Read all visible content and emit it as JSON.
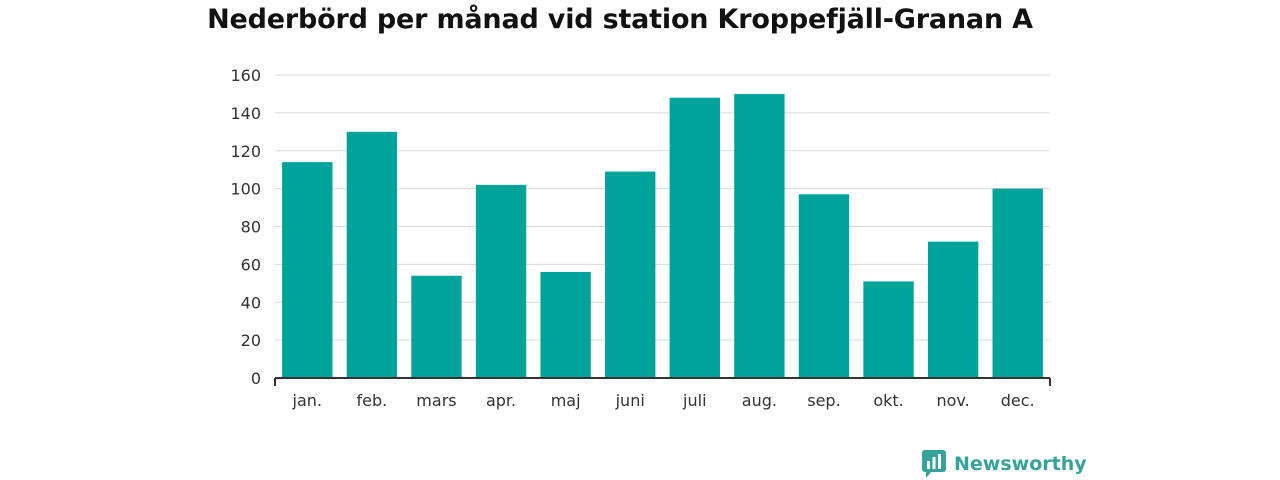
{
  "chart_data": {
    "type": "bar",
    "title": "Nederbörd per månad vid station Kroppefjäll-Granan A",
    "categories": [
      "jan.",
      "feb.",
      "mars",
      "apr.",
      "maj",
      "juni",
      "juli",
      "aug.",
      "sep.",
      "okt.",
      "nov.",
      "dec."
    ],
    "values": [
      114,
      130,
      54,
      102,
      56,
      109,
      148,
      150,
      97,
      51,
      72,
      100
    ],
    "ylim": [
      0,
      160
    ],
    "yticks": [
      0,
      20,
      40,
      60,
      80,
      100,
      120,
      140,
      160
    ],
    "grid": true,
    "bar_color": "#00a39a"
  },
  "brand": {
    "name": "Newsworthy",
    "color": "#35a39a",
    "icon": "newsworthy-logo-icon"
  }
}
